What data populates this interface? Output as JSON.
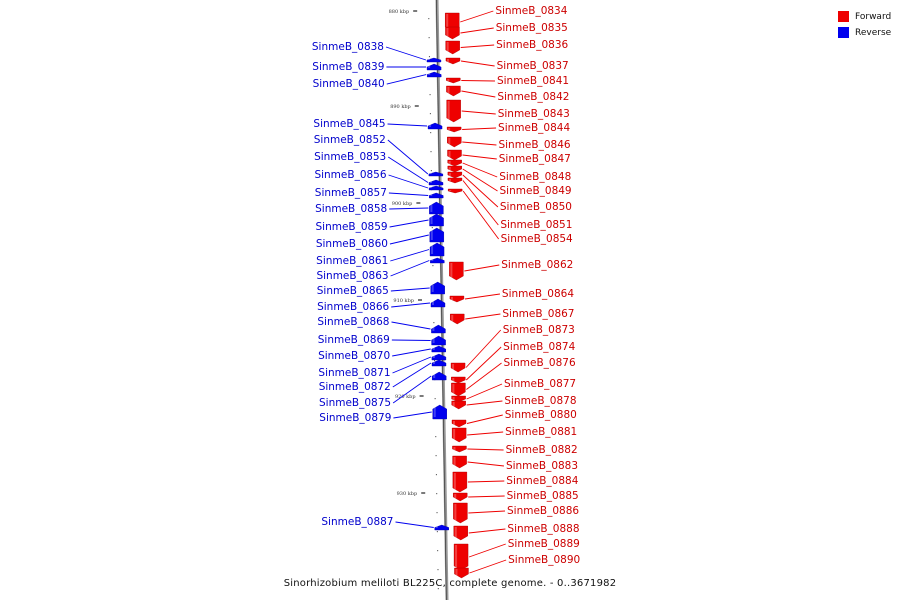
{
  "legend": {
    "forward_label": "Forward",
    "reverse_label": "Reverse",
    "forward_color": "#ee0000",
    "reverse_color": "#0000ee"
  },
  "caption": "Sinorhizobium meliloti BL225C, complete genome. - 0..3671982",
  "ticks": [
    "880 kbp",
    "890 kbp",
    "900 kbp",
    "910 kbp",
    "920 kbp",
    "930 kbp"
  ],
  "forward_genes": [
    "SinmeB_0834",
    "SinmeB_0835",
    "SinmeB_0836",
    "SinmeB_0837",
    "SinmeB_0841",
    "SinmeB_0842",
    "SinmeB_0843",
    "SinmeB_0844",
    "SinmeB_0846",
    "SinmeB_0847",
    "SinmeB_0848",
    "SinmeB_0849",
    "SinmeB_0850",
    "SinmeB_0851",
    "SinmeB_0854",
    "SinmeB_0862",
    "SinmeB_0864",
    "SinmeB_0867",
    "SinmeB_0873",
    "SinmeB_0874",
    "SinmeB_0876",
    "SinmeB_0877",
    "SinmeB_0878",
    "SinmeB_0880",
    "SinmeB_0881",
    "SinmeB_0882",
    "SinmeB_0883",
    "SinmeB_0884",
    "SinmeB_0885",
    "SinmeB_0886",
    "SinmeB_0888",
    "SinmeB_0889",
    "SinmeB_0890"
  ],
  "reverse_genes": [
    "SinmeB_0838",
    "SinmeB_0839",
    "SinmeB_0840",
    "SinmeB_0845",
    "SinmeB_0852",
    "SinmeB_0853",
    "SinmeB_0856",
    "SinmeB_0857",
    "SinmeB_0858",
    "SinmeB_0859",
    "SinmeB_0860",
    "SinmeB_0861",
    "SinmeB_0863",
    "SinmeB_0865",
    "SinmeB_0866",
    "SinmeB_0868",
    "SinmeB_0869",
    "SinmeB_0870",
    "SinmeB_0871",
    "SinmeB_0872",
    "SinmeB_0875",
    "SinmeB_0879",
    "SinmeB_0887"
  ]
}
